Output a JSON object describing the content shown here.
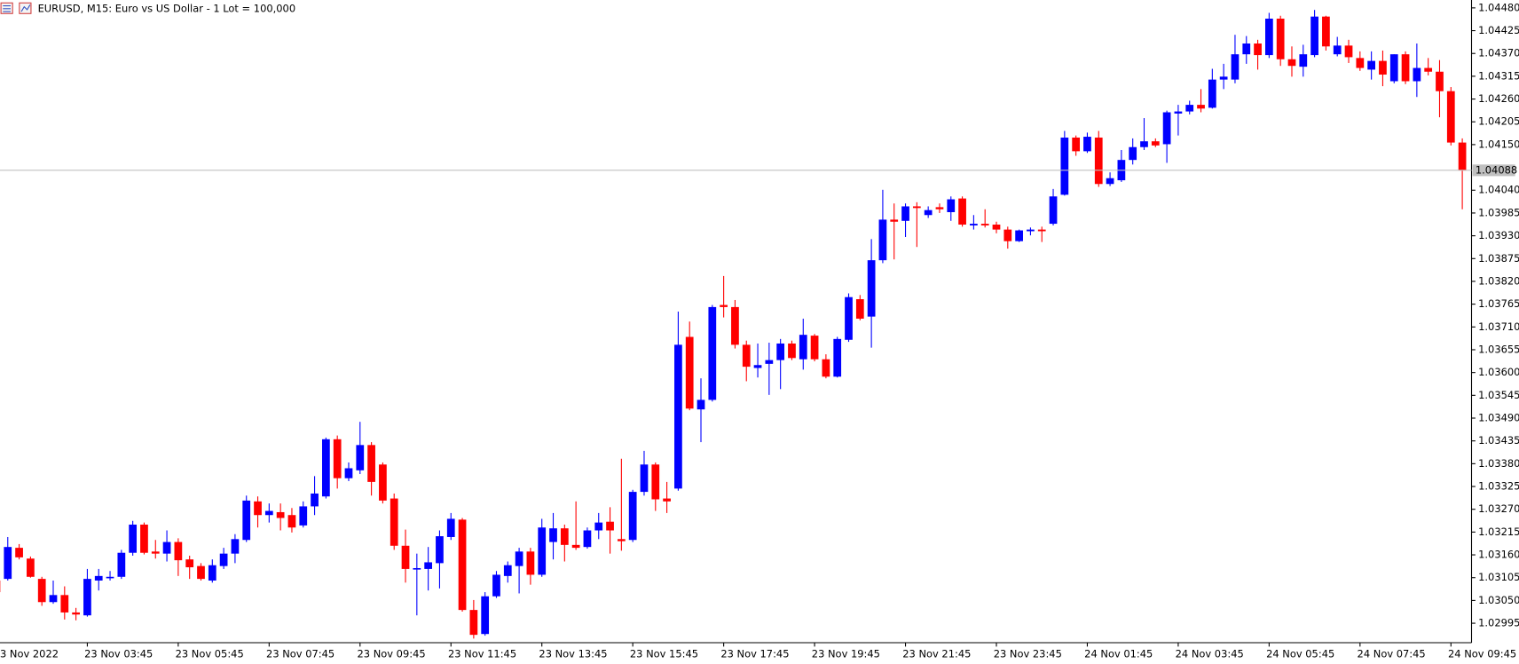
{
  "chart_data": {
    "type": "candlestick",
    "title": "EURUSD, M15:  Euro vs US Dollar - 1 Lot = 100,000",
    "up_color": "#0000ff",
    "down_color": "#ff0000",
    "ylim": [
      1.02948,
      1.04499
    ],
    "yticks": [
      {
        "value": 1.0448,
        "label": "1.04480"
      },
      1.04425,
      {
        "value": 1.0437,
        "label": "1.04370"
      },
      1.04315,
      {
        "value": 1.0426,
        "label": "1.04260"
      },
      1.04205,
      {
        "value": 1.0415,
        "label": "1.04150"
      },
      {
        "value": 1.0404,
        "label": "1.04040"
      },
      1.03985,
      {
        "value": 1.0393,
        "label": "1.03930"
      },
      1.03875,
      {
        "value": 1.0382,
        "label": "1.03820"
      },
      1.03765,
      {
        "value": 1.0371,
        "label": "1.03710"
      },
      1.03655,
      {
        "value": 1.036,
        "label": "1.03600"
      },
      1.03545,
      {
        "value": 1.0349,
        "label": "1.03490"
      },
      1.03435,
      {
        "value": 1.0338,
        "label": "1.03380"
      },
      1.03325,
      {
        "value": 1.0327,
        "label": "1.03270"
      },
      1.03215,
      {
        "value": 1.0316,
        "label": "1.03160"
      },
      1.03105,
      {
        "value": 1.0305,
        "label": "1.03050"
      },
      1.02995
    ],
    "last_price": 1.04088,
    "categories": [
      "23 Nov 2022",
      null,
      null,
      null,
      null,
      null,
      null,
      null,
      "23 Nov 03:45",
      null,
      null,
      null,
      null,
      null,
      null,
      null,
      "23 Nov 05:45",
      null,
      null,
      null,
      null,
      null,
      null,
      null,
      "23 Nov 07:45",
      null,
      null,
      null,
      null,
      null,
      null,
      null,
      "23 Nov 09:45",
      null,
      null,
      null,
      null,
      null,
      null,
      null,
      "23 Nov 11:45",
      null,
      null,
      null,
      null,
      null,
      null,
      null,
      "23 Nov 13:45",
      null,
      null,
      null,
      null,
      null,
      null,
      null,
      "23 Nov 15:45",
      null,
      null,
      null,
      null,
      null,
      null,
      null,
      "23 Nov 17:45",
      null,
      null,
      null,
      null,
      null,
      null,
      null,
      "23 Nov 19:45",
      null,
      null,
      null,
      null,
      null,
      null,
      null,
      "23 Nov 21:45",
      null,
      null,
      null,
      null,
      null,
      null,
      null,
      "23 Nov 23:45",
      null,
      null,
      null,
      null,
      null,
      null,
      null,
      "24 Nov 01:45",
      null,
      null,
      null,
      null,
      null,
      null,
      null,
      "24 Nov 03:45",
      null,
      null,
      null,
      null,
      null,
      null,
      null,
      "24 Nov 05:45",
      null,
      null,
      null,
      null,
      null,
      null,
      null,
      "24 Nov 07:45",
      null,
      null,
      null,
      null,
      null,
      null,
      null,
      "24 Nov 09:45",
      null
    ],
    "open": [
      1.03098,
      1.03102,
      1.03177,
      1.03151,
      1.03102,
      1.03046,
      1.03063,
      1.03021,
      1.03014,
      1.03098,
      1.03105,
      1.03107,
      1.03165,
      1.03233,
      1.03168,
      1.03163,
      1.03191,
      1.03149,
      1.03133,
      1.03098,
      1.03133,
      1.03163,
      1.03196,
      1.03289,
      1.03256,
      1.03263,
      1.03256,
      1.03231,
      1.03277,
      1.03301,
      1.03439,
      1.03345,
      1.03364,
      1.03425,
      1.03378,
      1.03296,
      1.03182,
      1.03126,
      1.03126,
      1.0314,
      1.03203,
      1.03245,
      1.03027,
      1.02969,
      1.0306,
      1.03109,
      1.03133,
      1.03168,
      1.03112,
      1.03191,
      1.03224,
      1.03184,
      1.03179,
      1.03219,
      1.0324,
      1.03198,
      1.03196,
      1.03312,
      1.03378,
      1.03296,
      1.0332,
      1.03686,
      1.03511,
      1.03534,
      1.03763,
      1.03758,
      1.03667,
      1.03611,
      1.03621,
      1.0363,
      1.0367,
      1.03632,
      1.03689,
      1.03632,
      1.0359,
      1.03679,
      1.03777,
      1.03735,
      1.03871,
      1.03969,
      1.03966,
      1.04001,
      1.0398,
      1.03999,
      1.03987,
      1.0402,
      1.03955,
      1.03959,
      1.03957,
      1.03945,
      1.03917,
      1.03941,
      1.03945,
      1.03959,
      1.04029,
      1.04167,
      1.04134,
      1.04167,
      1.04055,
      1.04064,
      1.04113,
      1.04144,
      1.04158,
      1.04151,
      1.04225,
      1.0423,
      1.04246,
      1.04239,
      1.04307,
      1.04307,
      1.04368,
      1.04394,
      1.04366,
      1.04454,
      1.04356,
      1.04338,
      1.04366,
      1.04459,
      1.04368,
      1.04389,
      1.04359,
      1.04331,
      1.04352,
      1.04303,
      1.04368,
      1.04303,
      1.04335,
      1.04326,
      1.04279,
      1.04155
    ],
    "high": [
      1.03102,
      1.03203,
      1.03186,
      1.03156,
      1.03107,
      1.03098,
      1.03084,
      1.03032,
      1.03126,
      1.03126,
      1.03121,
      1.03172,
      1.03242,
      1.03238,
      1.03196,
      1.03219,
      1.032,
      1.03158,
      1.0314,
      1.03149,
      1.03177,
      1.0321,
      1.03303,
      1.03301,
      1.03284,
      1.03284,
      1.03273,
      1.03289,
      1.0335,
      1.03443,
      1.03448,
      1.03383,
      1.03481,
      1.03432,
      1.03383,
      1.03308,
      1.03221,
      1.03163,
      1.03179,
      1.03219,
      1.03261,
      1.03249,
      1.03051,
      1.0307,
      1.03121,
      1.03144,
      1.03177,
      1.03177,
      1.03247,
      1.03261,
      1.03233,
      1.03289,
      1.03226,
      1.03261,
      1.03275,
      1.03392,
      1.03317,
      1.03411,
      1.03383,
      1.03336,
      1.03747,
      1.03723,
      1.03586,
      1.03763,
      1.03833,
      1.03775,
      1.03677,
      1.0367,
      1.03672,
      1.03681,
      1.03677,
      1.0373,
      1.03693,
      1.03644,
      1.03686,
      1.03791,
      1.03787,
      1.03922,
      1.04041,
      1.04008,
      1.04008,
      1.04011,
      1.04001,
      1.04008,
      1.04025,
      1.04025,
      1.0398,
      1.03994,
      1.03964,
      1.03952,
      1.03945,
      1.0395,
      1.03952,
      1.04043,
      1.04183,
      1.04172,
      1.04179,
      1.04183,
      1.04083,
      1.04137,
      1.04165,
      1.04214,
      1.04165,
      1.04232,
      1.04246,
      1.04256,
      1.04284,
      1.04333,
      1.04345,
      1.04415,
      1.04412,
      1.04403,
      1.04468,
      1.04461,
      1.04387,
      1.04391,
      1.04475,
      1.04461,
      1.0441,
      1.04403,
      1.04375,
      1.04375,
      1.04377,
      1.04368,
      1.04375,
      1.04394,
      1.04359,
      1.04354,
      1.04289,
      1.04165
    ],
    "low": [
      1.03056,
      1.03098,
      1.03149,
      1.03105,
      1.03037,
      1.03042,
      1.03004,
      1.03002,
      1.03011,
      1.03074,
      1.03098,
      1.03102,
      1.03158,
      1.03161,
      1.03151,
      1.03144,
      1.03109,
      1.03102,
      1.03098,
      1.03093,
      1.03126,
      1.0314,
      1.03191,
      1.03226,
      1.03238,
      1.03219,
      1.03214,
      1.03226,
      1.03256,
      1.03296,
      1.0332,
      1.03338,
      1.03355,
      1.03303,
      1.03284,
      1.03172,
      1.03093,
      1.03014,
      1.03074,
      1.03079,
      1.03196,
      1.03023,
      1.02958,
      1.02965,
      1.03056,
      1.03093,
      1.03067,
      1.03088,
      1.03107,
      1.03149,
      1.03144,
      1.03172,
      1.03175,
      1.03198,
      1.03163,
      1.0317,
      1.03191,
      1.03303,
      1.03266,
      1.03261,
      1.03315,
      1.03509,
      1.03432,
      1.0353,
      1.03733,
      1.03658,
      1.03579,
      1.03588,
      1.03546,
      1.0356,
      1.0363,
      1.03607,
      1.03627,
      1.03586,
      1.03588,
      1.03674,
      1.03726,
      1.0366,
      1.03864,
      1.03873,
      1.03927,
      1.03903,
      1.03973,
      1.03985,
      1.03966,
      1.03952,
      1.03945,
      1.0395,
      1.03936,
      1.03899,
      1.03915,
      1.03931,
      1.03915,
      1.03955,
      1.04027,
      1.04123,
      1.0413,
      1.04048,
      1.0405,
      1.0406,
      1.04102,
      1.04137,
      1.04144,
      1.04106,
      1.04172,
      1.04223,
      1.04228,
      1.04237,
      1.04284,
      1.04298,
      1.04345,
      1.04331,
      1.04359,
      1.0434,
      1.04314,
      1.04314,
      1.04361,
      1.04377,
      1.04363,
      1.04347,
      1.04328,
      1.04307,
      1.04291,
      1.04298,
      1.04296,
      1.04265,
      1.04317,
      1.04216,
      1.04148,
      1.03994
    ],
    "close": [
      1.0307,
      1.03179,
      1.03154,
      1.03107,
      1.03046,
      1.03063,
      1.03021,
      1.03016,
      1.03102,
      1.03109,
      1.03107,
      1.03165,
      1.03233,
      1.03165,
      1.03163,
      1.03191,
      1.03147,
      1.0313,
      1.03102,
      1.03135,
      1.03163,
      1.03198,
      1.03291,
      1.03256,
      1.03266,
      1.03249,
      1.03226,
      1.03277,
      1.03308,
      1.03439,
      1.03345,
      1.03369,
      1.03425,
      1.03336,
      1.03291,
      1.03182,
      1.03126,
      1.03128,
      1.03142,
      1.03205,
      1.03247,
      1.03027,
      1.02967,
      1.0306,
      1.03112,
      1.03135,
      1.03168,
      1.03112,
      1.03226,
      1.03224,
      1.03184,
      1.03177,
      1.03219,
      1.03238,
      1.03219,
      1.03193,
      1.03312,
      1.03378,
      1.03294,
      1.03289,
      1.03667,
      1.03513,
      1.03534,
      1.03758,
      1.03758,
      1.03667,
      1.03614,
      1.03618,
      1.0363,
      1.0367,
      1.03635,
      1.03691,
      1.03632,
      1.0359,
      1.03681,
      1.03782,
      1.0373,
      1.03871,
      1.03969,
      1.03964,
      1.04001,
      1.03997,
      1.03992,
      1.03994,
      1.04018,
      1.03957,
      1.03959,
      1.03955,
      1.03945,
      1.03917,
      1.03943,
      1.03945,
      1.03941,
      1.04025,
      1.04167,
      1.04134,
      1.04169,
      1.04055,
      1.04069,
      1.04113,
      1.04144,
      1.04158,
      1.04148,
      1.04228,
      1.0423,
      1.04246,
      1.04237,
      1.04307,
      1.04314,
      1.04368,
      1.04394,
      1.04366,
      1.04454,
      1.04356,
      1.0434,
      1.04368,
      1.04459,
      1.04387,
      1.04389,
      1.04361,
      1.04335,
      1.04352,
      1.04319,
      1.04368,
      1.04303,
      1.04335,
      1.04326,
      1.04279,
      1.04155,
      1.04088
    ]
  }
}
